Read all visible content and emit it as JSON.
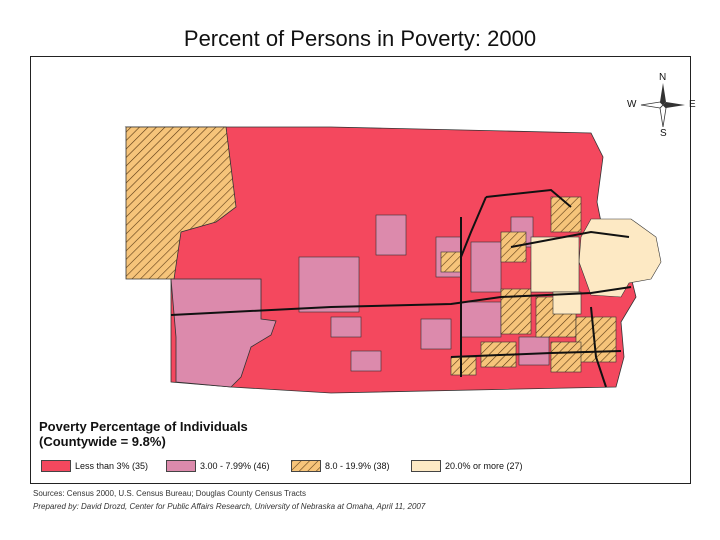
{
  "title": "Percent of Persons in Poverty: 2000",
  "compass": {
    "n": "N",
    "s": "S",
    "e": "E",
    "w": "W"
  },
  "legend": {
    "title_line1": "Poverty Percentage of Individuals",
    "title_line2": "(Countywide = 9.8%)",
    "classes": [
      {
        "label": "Less than 3% (35)",
        "color": "#f4485e",
        "pattern": "solid"
      },
      {
        "label": "3.00 - 7.99% (46)",
        "color": "#dc8aac",
        "pattern": "solid"
      },
      {
        "label": "8.0 - 19.9% (38)",
        "color": "#f6c47a",
        "pattern": "hatched"
      },
      {
        "label": "20.0% or more (27)",
        "color": "#fde9c4",
        "pattern": "solid"
      }
    ]
  },
  "sources": "Sources: Census 2000, U.S. Census Bureau; Douglas County Census Tracts",
  "prepared_by": "Prepared by: David Drozd, Center for Public Affairs Research, University of Nebraska at Omaha, April 11, 2007"
}
